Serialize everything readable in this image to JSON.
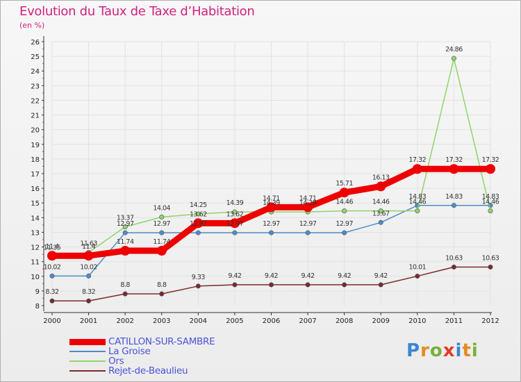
{
  "header": {
    "title": "Evolution du Taux de Taxe d’Habitation",
    "unit": "(en %)"
  },
  "brand": {
    "text": "Proxiti",
    "letters": [
      {
        "ch": "P",
        "color": "#3b86d1"
      },
      {
        "ch": "r",
        "color": "#e58a1f"
      },
      {
        "ch": "o",
        "color": "#7ab03a"
      },
      {
        "ch": "x",
        "color": "#e53a2a"
      },
      {
        "ch": "i",
        "color": "#3b86d1"
      },
      {
        "ch": "t",
        "color": "#e58a1f"
      },
      {
        "ch": "i",
        "color": "#7ab03a"
      }
    ]
  },
  "chart_data": {
    "type": "line",
    "title": "Evolution du Taux de Taxe d’Habitation",
    "ylabel": "(en %)",
    "xlabel": "",
    "ylim": [
      8,
      26
    ],
    "yticks": [
      8,
      9,
      10,
      11,
      12,
      13,
      14,
      15,
      16,
      17,
      18,
      19,
      20,
      21,
      22,
      23,
      24,
      25,
      26
    ],
    "categories": [
      "2000",
      "2001",
      "2002",
      "2003",
      "2004",
      "2005",
      "2006",
      "2007",
      "2008",
      "2009",
      "2010",
      "2011",
      "2012"
    ],
    "grid": true,
    "series": [
      {
        "name": "Rejet-de-Beaulieu",
        "color": "#7a2a2a",
        "values": [
          8.32,
          8.32,
          8.8,
          8.8,
          9.33,
          9.42,
          9.42,
          9.42,
          9.42,
          9.42,
          10.01,
          10.63,
          10.63
        ],
        "labels": [
          "8.32",
          "8.32",
          "8.8",
          "8.8",
          "9.33",
          "9.42",
          "9.42",
          "9.42",
          "9.42",
          "9.42",
          "10.01",
          "10.63",
          "10.63"
        ]
      },
      {
        "name": "La Groise",
        "color": "#4f8cc9",
        "values": [
          10.02,
          10.02,
          12.97,
          12.97,
          12.97,
          12.97,
          12.97,
          12.97,
          12.97,
          13.67,
          14.83,
          14.83,
          14.83
        ],
        "labels": [
          "10.02",
          "10.02",
          "12.97",
          "12.97",
          "12.97",
          "12.97",
          "12.97",
          "12.97",
          "12.97",
          "13.67",
          "14.83",
          "14.83",
          "14.83"
        ]
      },
      {
        "name": "Ors",
        "color": "#8fd46a",
        "values": [
          11.35,
          11.63,
          13.37,
          14.04,
          14.25,
          14.39,
          14.39,
          14.39,
          14.46,
          14.46,
          14.46,
          24.86,
          14.46
        ],
        "labels": [
          "11.35",
          "11.63",
          "13.37",
          "14.04",
          "14.25",
          "14.39",
          "14.39",
          "14.39",
          "14.46",
          "14.46",
          "14.46",
          "24.86",
          "14.46"
        ]
      },
      {
        "name": "CATILLON-SUR-SAMBRE",
        "color": "#ee0000",
        "values": [
          11.4,
          11.4,
          11.74,
          11.74,
          13.62,
          13.62,
          14.71,
          14.71,
          15.71,
          16.13,
          17.32,
          17.32,
          17.32
        ],
        "labels": [
          "11.4",
          "11.4",
          "11.74",
          "11.74",
          "13.62",
          "13.62",
          "14.71",
          "14.71",
          "15.71",
          "16.13",
          "17.32",
          "17.32",
          "17.32"
        ]
      }
    ],
    "legend": [
      {
        "name": "CATILLON-SUR-SAMBRE",
        "color": "#ee0000"
      },
      {
        "name": "La Groise",
        "color": "#4f8cc9"
      },
      {
        "name": "Ors",
        "color": "#8fd46a"
      },
      {
        "name": "Rejet-de-Beaulieu",
        "color": "#7a2a2a"
      }
    ]
  }
}
